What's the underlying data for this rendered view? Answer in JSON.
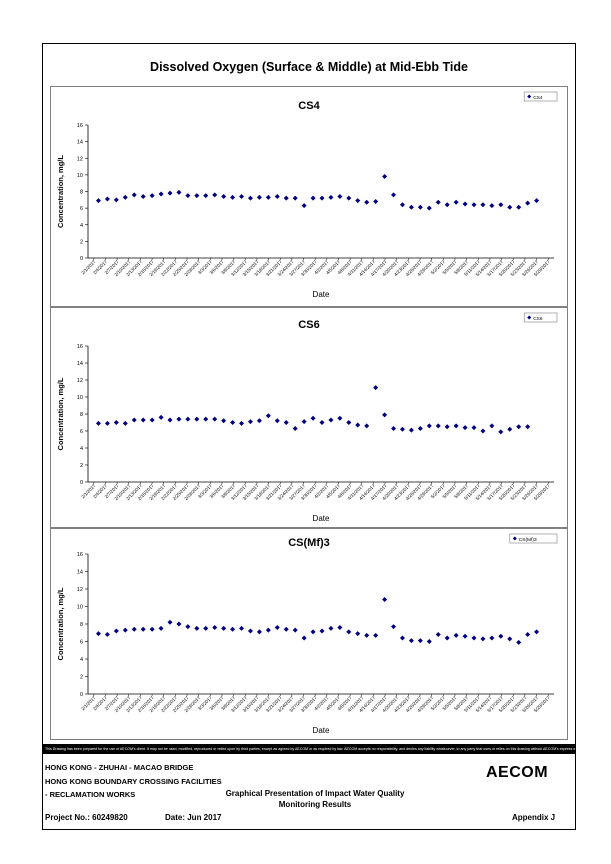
{
  "page": {
    "main_title": "Dissolved Oxygen (Surface & Middle) at Mid-Ebb Tide",
    "disclaimer": "This Drawing has been prepared for the use of AECOM's client. It may not be used, modified, reproduced or relied upon by third parties, except as agreed by AECOM or as required by law. AECOM accepts no responsibility, and denies any liability whatsoever, to any party that uses or relies on this drawing without AECOM's express written consent.",
    "footer": {
      "line1": "HONG KONG - ZHUHAI - MACAO BRIDGE",
      "line2": "HONG KONG BOUNDARY CROSSING FACILITIES",
      "line3": "- RECLAMATION WORKS",
      "project": "Project No.: 60249820",
      "date": "Date: Jun 2017",
      "center_line1": "Graphical Presentation of Impact Water Quality",
      "center_line2": "Monitoring Results",
      "appendix": "Appendix J",
      "logo": "AECOM"
    }
  },
  "chart_data": [
    {
      "type": "scatter",
      "title": "CS4",
      "xlabel": "Date",
      "ylabel": "Concentration, mg/L",
      "legend": "CS4",
      "legend_position": "top-right",
      "ylim": [
        0,
        16
      ],
      "yticks": [
        0,
        2,
        4,
        6,
        8,
        10,
        12,
        14,
        16
      ],
      "series_color": "#000080",
      "x": [
        "2/1/2017",
        "2/3/2017",
        "2/6/2017",
        "2/8/2017",
        "2/10/2017",
        "2/13/2017",
        "2/15/2017",
        "2/17/2017",
        "2/20/2017",
        "2/22/2017",
        "2/24/2017",
        "2/27/2017",
        "3/1/2017",
        "3/3/2017",
        "3/6/2017",
        "3/8/2017",
        "3/10/2017",
        "3/13/2017",
        "3/15/2017",
        "3/17/2017",
        "3/20/2017",
        "3/22/2017",
        "3/24/2017",
        "3/27/2017",
        "3/29/2017",
        "4/3/2017",
        "4/5/2017",
        "4/7/2017",
        "4/10/2017",
        "4/12/2017",
        "4/14/2017",
        "4/17/2017",
        "4/19/2017",
        "4/21/2017",
        "4/24/2017",
        "4/26/2017",
        "4/28/2017",
        "5/1/2017",
        "5/3/2017",
        "5/5/2017",
        "5/8/2017",
        "5/10/2017",
        "5/12/2017",
        "5/15/2017",
        "5/17/2017",
        "5/19/2017",
        "5/22/2017",
        "5/24/2017",
        "5/26/2017",
        "5/29/2017",
        "5/31/2017"
      ],
      "values": [
        6.9,
        7.1,
        7.0,
        7.3,
        7.6,
        7.4,
        7.5,
        7.7,
        7.8,
        7.9,
        7.5,
        7.5,
        7.5,
        7.6,
        7.4,
        7.3,
        7.4,
        7.2,
        7.3,
        7.3,
        7.4,
        7.2,
        7.2,
        6.3,
        7.2,
        7.2,
        7.3,
        7.4,
        7.2,
        6.9,
        6.7,
        6.8,
        9.8,
        7.6,
        6.4,
        6.1,
        6.1,
        6.0,
        6.7,
        6.4,
        6.7,
        6.5,
        6.4,
        6.4,
        6.3,
        6.4,
        6.1,
        6.1,
        6.6,
        6.9,
        null
      ],
      "x_tick_labels": [
        "2/1/2017",
        "2/4/2017",
        "2/7/2017",
        "2/10/2017",
        "2/13/2017",
        "2/16/2017",
        "2/19/2017",
        "2/22/2017",
        "2/25/2017",
        "2/28/2017",
        "3/3/2017",
        "3/6/2017",
        "3/9/2017",
        "3/12/2017",
        "3/15/2017",
        "3/18/2017",
        "3/21/2017",
        "3/24/2017",
        "3/27/2017",
        "3/30/2017",
        "4/2/2017",
        "4/5/2017",
        "4/8/2017",
        "4/11/2017",
        "4/14/2017",
        "4/17/2017",
        "4/20/2017",
        "4/23/2017",
        "4/26/2017",
        "4/29/2017",
        "5/2/2017",
        "5/5/2017",
        "5/8/2017",
        "5/11/2017",
        "5/14/2017",
        "5/17/2017",
        "5/20/2017",
        "5/23/2017",
        "5/26/2017",
        "5/29/2017"
      ]
    },
    {
      "type": "scatter",
      "title": "CS6",
      "xlabel": "Date",
      "ylabel": "Concentration, mg/L",
      "legend": "CS6",
      "legend_position": "top-right",
      "ylim": [
        0,
        16
      ],
      "yticks": [
        0,
        2,
        4,
        6,
        8,
        10,
        12,
        14,
        16
      ],
      "series_color": "#000080",
      "values": [
        6.9,
        6.9,
        7.0,
        6.9,
        7.3,
        7.3,
        7.3,
        7.6,
        7.3,
        7.4,
        7.4,
        7.4,
        7.4,
        7.4,
        7.2,
        7.0,
        6.9,
        7.1,
        7.2,
        7.8,
        7.2,
        7.0,
        6.3,
        7.1,
        7.5,
        7.0,
        7.3,
        7.5,
        7.0,
        6.7,
        6.6,
        11.1,
        7.9,
        6.3,
        6.2,
        6.1,
        6.3,
        6.6,
        6.6,
        6.5,
        6.6,
        6.4,
        6.4,
        6.0,
        6.6,
        5.9,
        6.2,
        6.5,
        6.5,
        null,
        null
      ],
      "x_tick_labels": [
        "2/1/2017",
        "2/4/2017",
        "2/7/2017",
        "2/10/2017",
        "2/13/2017",
        "2/16/2017",
        "2/19/2017",
        "2/22/2017",
        "2/25/2017",
        "2/28/2017",
        "3/3/2017",
        "3/6/2017",
        "3/9/2017",
        "3/12/2017",
        "3/15/2017",
        "3/18/2017",
        "3/21/2017",
        "3/24/2017",
        "3/27/2017",
        "3/30/2017",
        "4/2/2017",
        "4/5/2017",
        "4/8/2017",
        "4/11/2017",
        "4/14/2017",
        "4/17/2017",
        "4/20/2017",
        "4/23/2017",
        "4/26/2017",
        "4/29/2017",
        "5/2/2017",
        "5/5/2017",
        "5/8/2017",
        "5/11/2017",
        "5/14/2017",
        "5/17/2017",
        "5/20/2017",
        "5/23/2017",
        "5/26/2017",
        "5/29/2017"
      ]
    },
    {
      "type": "scatter",
      "title": "CS(Mf)3",
      "xlabel": "Date",
      "ylabel": "Concentration, mg/L",
      "legend": "CS(Mf)3",
      "legend_position": "top-right",
      "ylim": [
        0,
        16
      ],
      "yticks": [
        0,
        2,
        4,
        6,
        8,
        10,
        12,
        14,
        16
      ],
      "series_color": "#000080",
      "values": [
        6.9,
        6.8,
        7.2,
        7.3,
        7.4,
        7.4,
        7.4,
        7.5,
        8.2,
        8.0,
        7.7,
        7.5,
        7.5,
        7.6,
        7.5,
        7.4,
        7.5,
        7.2,
        7.1,
        7.3,
        7.6,
        7.4,
        7.3,
        6.4,
        7.1,
        7.2,
        7.5,
        7.6,
        7.1,
        6.9,
        6.7,
        6.7,
        10.8,
        7.7,
        6.4,
        6.1,
        6.1,
        6.0,
        6.8,
        6.4,
        6.7,
        6.6,
        6.4,
        6.3,
        6.4,
        6.6,
        6.3,
        5.9,
        6.8,
        7.1,
        null
      ],
      "x_tick_labels": [
        "2/1/2017",
        "2/4/2017",
        "2/7/2017",
        "2/10/2017",
        "2/13/2017",
        "2/16/2017",
        "2/19/2017",
        "2/22/2017",
        "2/25/2017",
        "2/28/2017",
        "3/3/2017",
        "3/6/2017",
        "3/9/2017",
        "3/12/2017",
        "3/15/2017",
        "3/18/2017",
        "3/21/2017",
        "3/24/2017",
        "3/27/2017",
        "3/30/2017",
        "4/2/2017",
        "4/5/2017",
        "4/8/2017",
        "4/11/2017",
        "4/14/2017",
        "4/17/2017",
        "4/20/2017",
        "4/23/2017",
        "4/26/2017",
        "4/29/2017",
        "5/2/2017",
        "5/5/2017",
        "5/8/2017",
        "5/11/2017",
        "5/14/2017",
        "5/17/2017",
        "5/20/2017",
        "5/23/2017",
        "5/26/2017",
        "5/29/2017"
      ]
    }
  ]
}
